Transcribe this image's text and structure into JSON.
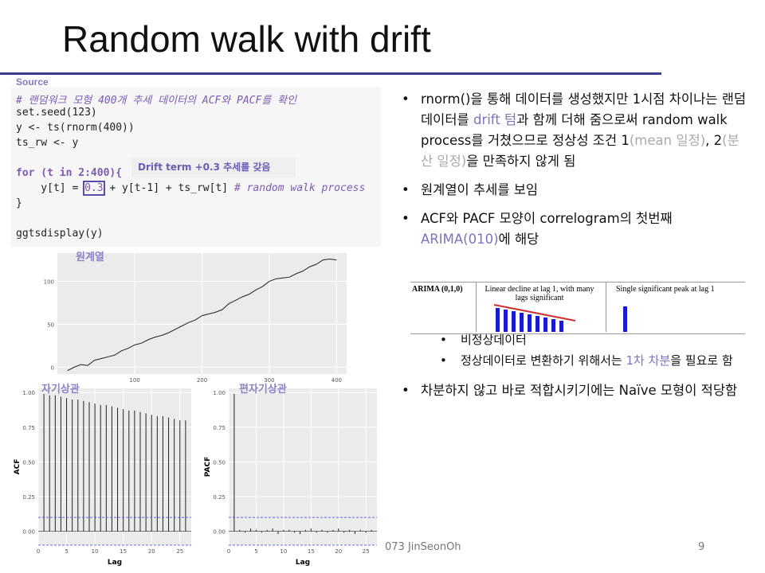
{
  "title": "Random walk with drift",
  "source": {
    "label": "Source",
    "lines": [
      "# 랜덤워크 모형 400개 추세 데이터의 ACF와 PACF를 확인",
      "set.seed(123)",
      "y <- ts(rnorm(400))",
      "ts_rw <- y",
      "for (t in 2:400){",
      "    y[t] = ",
      "0.3",
      " + y[t-1] + ts_rw[t] ",
      "# random walk process",
      "}",
      "ggtsdisplay(y)"
    ]
  },
  "annotation": "Drift term +0.3 추세를 갖음",
  "plots": [
    {
      "type": "line",
      "title": "원계열",
      "x": [
        0,
        10,
        20,
        30,
        40,
        50,
        60,
        70,
        80,
        90,
        100,
        110,
        120,
        130,
        140,
        150,
        160,
        170,
        180,
        190,
        200,
        210,
        220,
        230,
        240,
        250,
        260,
        270,
        280,
        290,
        300,
        310,
        320,
        330,
        340,
        350,
        360,
        370,
        380,
        390,
        400
      ],
      "values": [
        -4,
        0,
        3,
        2,
        8,
        10,
        12,
        14,
        19,
        22,
        26,
        28,
        32,
        35,
        37,
        40,
        44,
        48,
        52,
        55,
        60,
        62,
        64,
        67,
        74,
        78,
        82,
        85,
        90,
        94,
        100,
        103,
        104,
        105,
        109,
        112,
        117,
        120,
        125,
        126,
        125
      ],
      "xlim": [
        -15,
        415
      ],
      "ylim": [
        -8,
        133
      ],
      "xticks": [
        100,
        200,
        300,
        400
      ],
      "yticks": [
        0,
        50,
        100
      ]
    },
    {
      "type": "acf",
      "title": "자기상관",
      "x_label": "Lag",
      "y_label": "ACF",
      "x": [
        1,
        2,
        3,
        4,
        5,
        6,
        7,
        8,
        9,
        10,
        11,
        12,
        13,
        14,
        15,
        16,
        17,
        18,
        19,
        20,
        21,
        22,
        23,
        24,
        25,
        26
      ],
      "values": [
        0.99,
        0.98,
        0.98,
        0.97,
        0.96,
        0.95,
        0.95,
        0.94,
        0.93,
        0.92,
        0.91,
        0.91,
        0.9,
        0.89,
        0.88,
        0.87,
        0.87,
        0.86,
        0.85,
        0.84,
        0.83,
        0.83,
        0.82,
        0.81,
        0.8,
        0.8
      ],
      "bounds": [
        0.1,
        -0.1
      ],
      "xlim": [
        0,
        27
      ],
      "ylim": [
        -0.1,
        1.03
      ],
      "xticks": [
        0,
        5,
        10,
        15,
        20,
        25
      ],
      "yticks": [
        {
          "value": 0,
          "label": "0.00"
        },
        {
          "value": 0.25,
          "label": "0.25"
        },
        {
          "value": 0.5,
          "label": "0.50"
        },
        {
          "value": 0.75,
          "label": "0.75"
        },
        {
          "value": 1,
          "label": "1.00"
        }
      ]
    },
    {
      "type": "acf",
      "title": "편자기상관",
      "x_label": "Lag",
      "y_label": "PACF",
      "x": [
        1,
        2,
        3,
        4,
        5,
        6,
        7,
        8,
        9,
        10,
        11,
        12,
        13,
        14,
        15,
        16,
        17,
        18,
        19,
        20,
        21,
        22,
        23,
        24,
        25,
        26
      ],
      "values": [
        0.99,
        0.01,
        -0.01,
        0.02,
        0.01,
        -0.01,
        0.01,
        0.02,
        -0.02,
        0.01,
        0.01,
        -0.01,
        -0.02,
        0.01,
        0.02,
        -0.01,
        0.01,
        -0.01,
        0.01,
        0.02,
        -0.01,
        0.01,
        -0.02,
        0.01,
        -0.01,
        0.01
      ],
      "bounds": [
        0.1,
        -0.1
      ],
      "xlim": [
        0,
        27
      ],
      "ylim": [
        -0.1,
        1.03
      ],
      "xticks": [
        0,
        5,
        10,
        15,
        20,
        25
      ],
      "yticks": [
        {
          "value": 0,
          "label": "0.00"
        },
        {
          "value": 0.25,
          "label": "0.25"
        },
        {
          "value": 0.5,
          "label": "0.50"
        },
        {
          "value": 0.75,
          "label": "0.75"
        },
        {
          "value": 1,
          "label": "1.00"
        }
      ]
    }
  ],
  "bullets": [
    [
      "rnorm()을 통해 데이터를 생성했지만 1시점 차이나는 랜덤데이터를 ",
      "drift 텀",
      "과 함께 더해 줌으로써 random walk process를 거쳤으므로 정상성 조건 1",
      "(mean 일정)",
      ", 2",
      "(분산 일정)",
      "을 만족하지 않게 됨"
    ],
    [
      "원계열이 추세를 보임"
    ],
    [
      "ACF와 PACF 모양이 correlogram의 첫번째 ",
      "ARIMA(010)",
      "에 해당"
    ],
    [
      "차분하지 않고 바로 적합시키기에는 Naïve 모형이 적당함"
    ]
  ],
  "sub_bullets": [
    [
      "비정상데이터"
    ],
    [
      "정상데이터로 변환하기 위해서는 ",
      "1차 차분",
      "을 필요로 함"
    ]
  ],
  "correlogram": {
    "model": "ARIMA (0,1,0)",
    "acf_text": "Linear decline at lag 1, with many lags significant",
    "pacf_text": "Single significant peak at lag 1"
  },
  "footer": {
    "author": "073 JinSeonOh",
    "page": "9"
  }
}
